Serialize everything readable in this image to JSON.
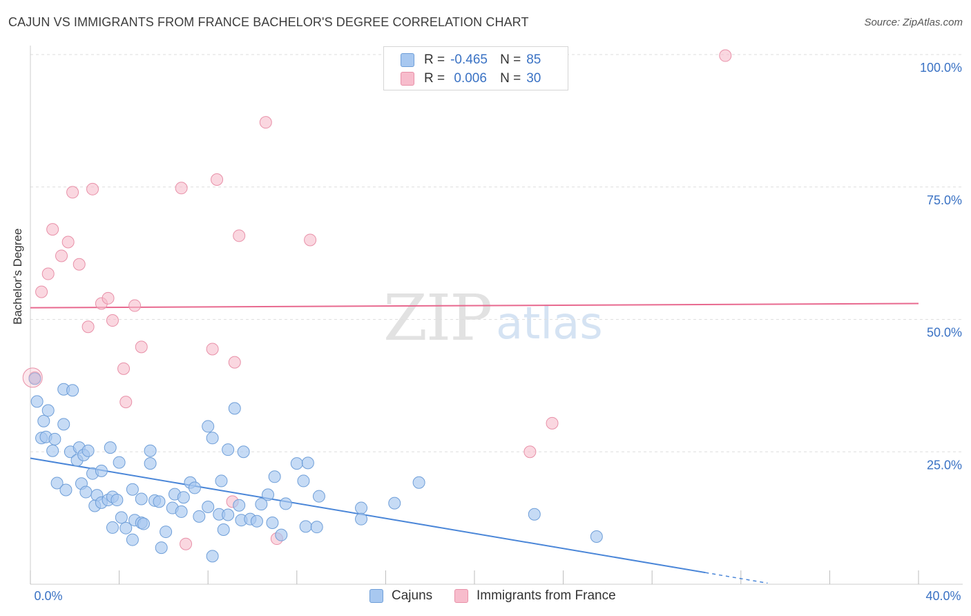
{
  "title": "CAJUN VS IMMIGRANTS FROM FRANCE BACHELOR'S DEGREE CORRELATION CHART",
  "source": "Source: ZipAtlas.com",
  "watermark": {
    "zip": "ZIP",
    "atlas": "atlas"
  },
  "legend": {
    "rows": [
      {
        "r_label": "R =",
        "r_value": "-0.465",
        "n_label": "N =",
        "n_value": "85",
        "color": "#a8c8f0"
      },
      {
        "r_label": "R =",
        "r_value": " 0.006",
        "n_label": "N =",
        "n_value": "30",
        "color": "#f7bccc"
      }
    ]
  },
  "bottom_legend": {
    "cajuns": "Cajuns",
    "france": "Immigrants from France"
  },
  "chart_data": {
    "type": "scatter",
    "title": "CAJUN VS IMMIGRANTS FROM FRANCE BACHELOR'S DEGREE CORRELATION CHART",
    "xlabel": "",
    "ylabel": "Bachelor's Degree",
    "xlim": [
      0,
      40
    ],
    "ylim": [
      0,
      100
    ],
    "x_tick_labels": [
      "0.0%",
      "40.0%"
    ],
    "y_tick_labels": [
      "25.0%",
      "50.0%",
      "75.0%",
      "100.0%"
    ],
    "y_ticks": [
      25,
      50,
      75,
      100
    ],
    "colors": {
      "cajuns": "#4a86d8",
      "cajuns_fill": "#a8c8f0",
      "france": "#e8698f",
      "france_fill": "#f7bccc"
    },
    "series": [
      {
        "name": "Cajuns",
        "r": -0.465,
        "n": 85,
        "trend": {
          "x0": 0,
          "y0": 23.8,
          "x1": 30.4,
          "y1": 2.2,
          "dash_to_x": 33.2
        },
        "points": [
          [
            0.2,
            38.8
          ],
          [
            0.3,
            34.5
          ],
          [
            0.6,
            30.8
          ],
          [
            0.8,
            32.8
          ],
          [
            1.5,
            36.8
          ],
          [
            1.9,
            36.6
          ],
          [
            1.5,
            30.2
          ],
          [
            0.5,
            27.6
          ],
          [
            0.7,
            27.8
          ],
          [
            1.1,
            27.4
          ],
          [
            1.0,
            25.2
          ],
          [
            1.8,
            25.0
          ],
          [
            2.1,
            23.4
          ],
          [
            2.2,
            25.8
          ],
          [
            2.4,
            24.4
          ],
          [
            2.6,
            25.2
          ],
          [
            2.8,
            20.9
          ],
          [
            3.2,
            21.4
          ],
          [
            3.6,
            25.8
          ],
          [
            4.0,
            23.0
          ],
          [
            5.4,
            25.2
          ],
          [
            5.4,
            22.8
          ],
          [
            8.0,
            29.8
          ],
          [
            8.2,
            27.6
          ],
          [
            9.2,
            33.2
          ],
          [
            8.9,
            25.4
          ],
          [
            9.6,
            25.0
          ],
          [
            1.2,
            19.1
          ],
          [
            1.6,
            17.8
          ],
          [
            2.3,
            19.0
          ],
          [
            2.5,
            17.4
          ],
          [
            3.0,
            16.8
          ],
          [
            2.9,
            14.8
          ],
          [
            3.2,
            15.4
          ],
          [
            3.5,
            15.9
          ],
          [
            3.7,
            16.5
          ],
          [
            3.9,
            15.9
          ],
          [
            4.6,
            17.9
          ],
          [
            5.0,
            16.1
          ],
          [
            5.6,
            15.8
          ],
          [
            5.8,
            15.6
          ],
          [
            6.4,
            14.4
          ],
          [
            6.5,
            17.0
          ],
          [
            6.8,
            13.7
          ],
          [
            6.9,
            16.4
          ],
          [
            7.2,
            19.2
          ],
          [
            7.4,
            18.2
          ],
          [
            7.6,
            12.8
          ],
          [
            8.0,
            14.6
          ],
          [
            8.5,
            13.2
          ],
          [
            8.6,
            19.5
          ],
          [
            9.4,
            14.9
          ],
          [
            9.5,
            12.1
          ],
          [
            9.9,
            12.3
          ],
          [
            10.4,
            15.1
          ],
          [
            10.7,
            16.9
          ],
          [
            11.0,
            20.3
          ],
          [
            11.5,
            15.2
          ],
          [
            12.0,
            22.8
          ],
          [
            12.3,
            19.5
          ],
          [
            12.5,
            22.9
          ],
          [
            13.0,
            16.6
          ],
          [
            14.9,
            14.4
          ],
          [
            14.9,
            12.3
          ],
          [
            16.4,
            15.3
          ],
          [
            17.5,
            19.2
          ],
          [
            22.7,
            13.2
          ],
          [
            25.5,
            9.0
          ],
          [
            4.1,
            12.6
          ],
          [
            4.3,
            10.6
          ],
          [
            4.6,
            8.4
          ],
          [
            4.7,
            12.1
          ],
          [
            5.0,
            11.6
          ],
          [
            5.1,
            11.4
          ],
          [
            3.7,
            10.7
          ],
          [
            6.1,
            9.9
          ],
          [
            5.9,
            6.9
          ],
          [
            8.2,
            5.3
          ],
          [
            8.7,
            10.3
          ],
          [
            10.9,
            11.6
          ],
          [
            11.3,
            9.3
          ],
          [
            12.4,
            10.9
          ],
          [
            12.9,
            10.8
          ],
          [
            8.9,
            13.1
          ],
          [
            10.2,
            11.9
          ]
        ]
      },
      {
        "name": "Immigrants from France",
        "r": 0.006,
        "n": 30,
        "trend": {
          "x0": 0,
          "y0": 52.2,
          "x1": 40,
          "y1": 53.0
        },
        "points": [
          [
            31.3,
            99.8
          ],
          [
            10.6,
            87.2
          ],
          [
            8.4,
            76.4
          ],
          [
            6.8,
            74.8
          ],
          [
            1.9,
            74.0
          ],
          [
            2.8,
            74.6
          ],
          [
            1.0,
            67.0
          ],
          [
            1.7,
            64.6
          ],
          [
            1.4,
            62.0
          ],
          [
            2.2,
            60.4
          ],
          [
            9.4,
            65.8
          ],
          [
            12.6,
            65.0
          ],
          [
            0.8,
            58.6
          ],
          [
            0.5,
            55.2
          ],
          [
            3.2,
            53.0
          ],
          [
            3.5,
            54.0
          ],
          [
            4.7,
            52.6
          ],
          [
            3.7,
            49.8
          ],
          [
            2.6,
            48.6
          ],
          [
            5.0,
            44.8
          ],
          [
            8.2,
            44.4
          ],
          [
            9.2,
            41.9
          ],
          [
            4.2,
            40.7
          ],
          [
            4.3,
            34.4
          ],
          [
            23.5,
            30.4
          ],
          [
            22.5,
            25.0
          ],
          [
            9.1,
            15.6
          ],
          [
            11.1,
            8.6
          ],
          [
            7.0,
            7.6
          ],
          [
            0.2,
            39.0
          ]
        ]
      }
    ]
  }
}
